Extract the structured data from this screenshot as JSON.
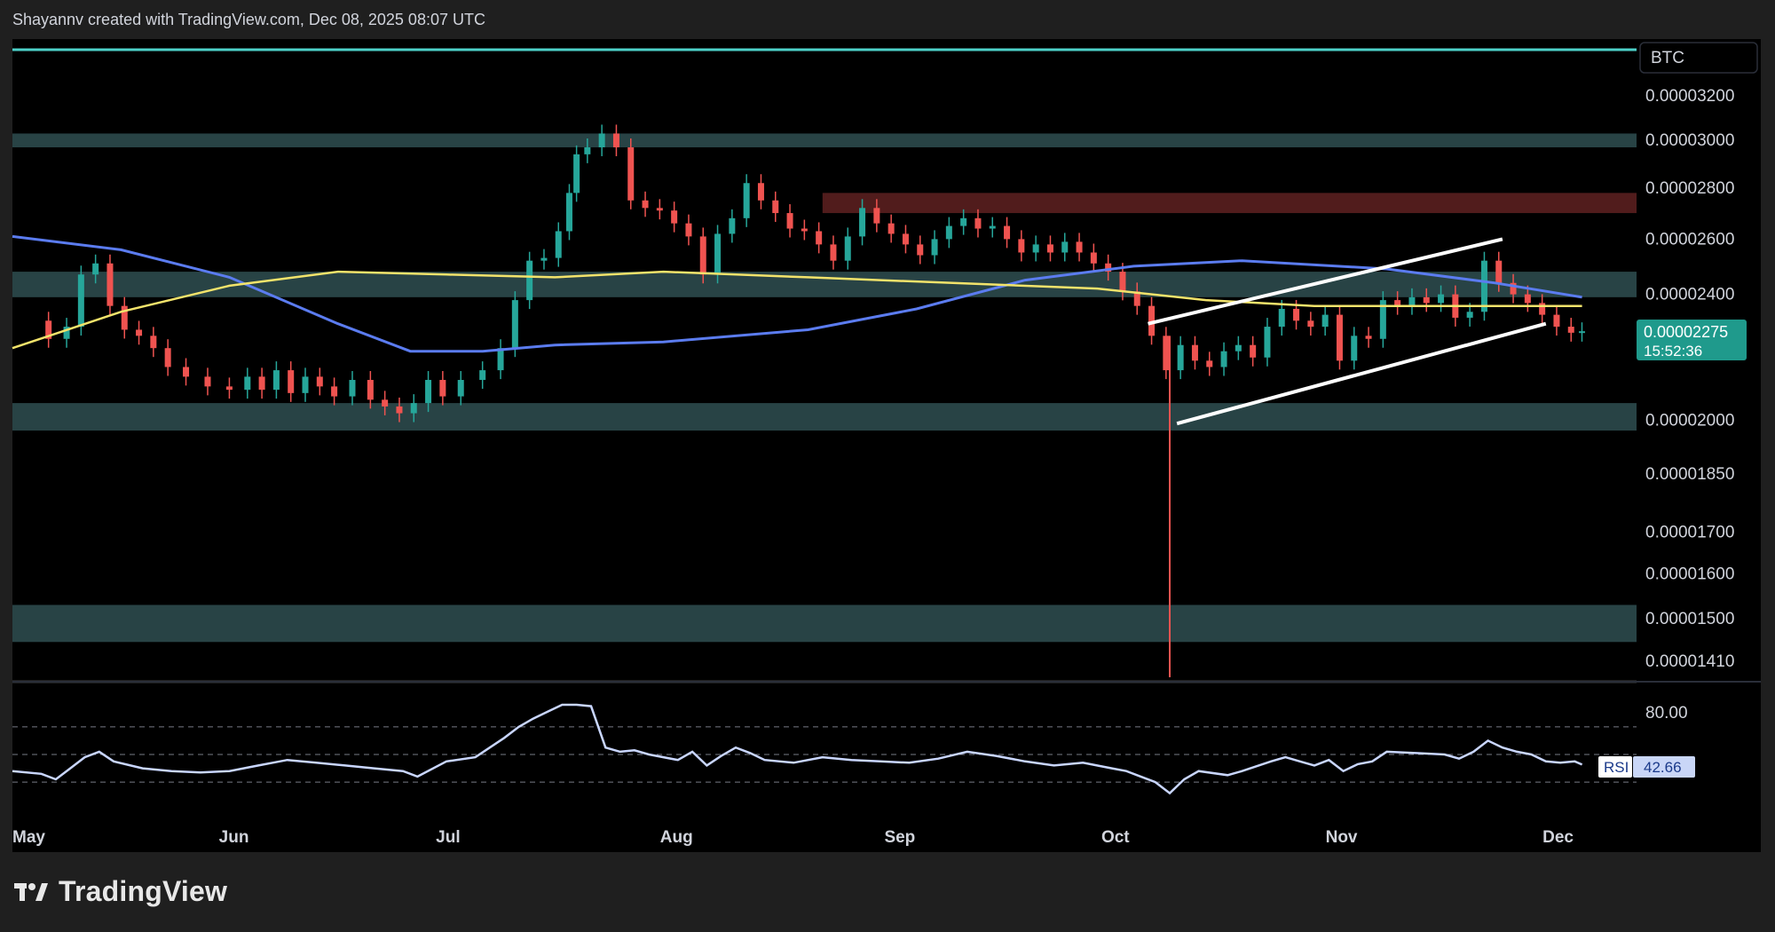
{
  "header": {
    "caption": "Shayannv created with TradingView.com, Dec 08, 2025 08:07 UTC"
  },
  "brand": {
    "name": "TradingView",
    "logo_icon": "tradingview-logo-icon"
  },
  "colors": {
    "background": "#000000",
    "frame": "#1f1f1f",
    "up": "#26a69a",
    "down": "#ef5350",
    "ma_blue": "#5b7cf0",
    "ma_yellow": "#f2e36b",
    "zone": "#2c4a4c",
    "supply_zone": "#5a1f1f",
    "top_line": "#4dd0c8",
    "badge": "#1f9a8c"
  },
  "chart_data": {
    "type": "candlestick",
    "symbol": "BTC",
    "y_axis": {
      "scale": "log",
      "range": [
        1.41e-05,
        3.35e-05
      ]
    },
    "y_ticks": [
      {
        "value": 3.2e-05,
        "label": "0.00003200"
      },
      {
        "value": 3e-05,
        "label": "0.00003000"
      },
      {
        "value": 2.8e-05,
        "label": "0.00002800"
      },
      {
        "value": 2.6e-05,
        "label": "0.00002600"
      },
      {
        "value": 2.4e-05,
        "label": "0.00002400"
      },
      {
        "value": 2e-05,
        "label": "0.00002000"
      },
      {
        "value": 1.85e-05,
        "label": "0.00001850"
      },
      {
        "value": 1.7e-05,
        "label": "0.00001700"
      },
      {
        "value": 1.6e-05,
        "label": "0.00001600"
      },
      {
        "value": 1.5e-05,
        "label": "0.00001500"
      },
      {
        "value": 1.41e-05,
        "label": "0.00001410"
      }
    ],
    "x_labels": [
      {
        "day": 0,
        "label": "May"
      },
      {
        "day": 31,
        "label": "Jun"
      },
      {
        "day": 61,
        "label": "Jul"
      },
      {
        "day": 92,
        "label": "Aug"
      },
      {
        "day": 123,
        "label": "Sep"
      },
      {
        "day": 153,
        "label": "Oct"
      },
      {
        "day": 184,
        "label": "Nov"
      },
      {
        "day": 214,
        "label": "Dec"
      }
    ],
    "current_price": {
      "value": 2.275e-05,
      "label": "0.00002275",
      "countdown": "15:52:36"
    },
    "close_series": [
      [
        3,
        2.31e-05
      ],
      [
        6,
        2.25e-05
      ],
      [
        8,
        2.29e-05
      ],
      [
        10,
        2.47e-05
      ],
      [
        12,
        2.51e-05
      ],
      [
        14,
        2.36e-05
      ],
      [
        16,
        2.28e-05
      ],
      [
        18,
        2.26e-05
      ],
      [
        20,
        2.22e-05
      ],
      [
        22,
        2.16e-05
      ],
      [
        25,
        2.13e-05
      ],
      [
        28,
        2.1e-05
      ],
      [
        31,
        2.09e-05
      ],
      [
        33,
        2.13e-05
      ],
      [
        35,
        2.09e-05
      ],
      [
        37,
        2.15e-05
      ],
      [
        39,
        2.08e-05
      ],
      [
        41,
        2.13e-05
      ],
      [
        43,
        2.1e-05
      ],
      [
        45,
        2.07e-05
      ],
      [
        48,
        2.12e-05
      ],
      [
        50,
        2.06e-05
      ],
      [
        52,
        2.04e-05
      ],
      [
        54,
        2.02e-05
      ],
      [
        56,
        2.05e-05
      ],
      [
        58,
        2.12e-05
      ],
      [
        60,
        2.07e-05
      ],
      [
        63,
        2.12e-05
      ],
      [
        66,
        2.15e-05
      ],
      [
        68,
        2.22e-05
      ],
      [
        70,
        2.38e-05
      ],
      [
        72,
        2.52e-05
      ],
      [
        74,
        2.53e-05
      ],
      [
        76,
        2.63e-05
      ],
      [
        77,
        2.78e-05
      ],
      [
        78,
        2.94e-05
      ],
      [
        80,
        2.97e-05
      ],
      [
        82,
        3.03e-05
      ],
      [
        84,
        2.97e-05
      ],
      [
        86,
        2.75e-05
      ],
      [
        88,
        2.72e-05
      ],
      [
        90,
        2.71e-05
      ],
      [
        92,
        2.66e-05
      ],
      [
        94,
        2.61e-05
      ],
      [
        96,
        2.47e-05
      ],
      [
        98,
        2.62e-05
      ],
      [
        100,
        2.68e-05
      ],
      [
        102,
        2.82e-05
      ],
      [
        104,
        2.75e-05
      ],
      [
        106,
        2.7e-05
      ],
      [
        108,
        2.64e-05
      ],
      [
        110,
        2.63e-05
      ],
      [
        112,
        2.58e-05
      ],
      [
        114,
        2.52e-05
      ],
      [
        116,
        2.61e-05
      ],
      [
        118,
        2.72e-05
      ],
      [
        120,
        2.66e-05
      ],
      [
        122,
        2.62e-05
      ],
      [
        124,
        2.58e-05
      ],
      [
        126,
        2.54e-05
      ],
      [
        128,
        2.6e-05
      ],
      [
        130,
        2.65e-05
      ],
      [
        132,
        2.68e-05
      ],
      [
        134,
        2.64e-05
      ],
      [
        136,
        2.65e-05
      ],
      [
        138,
        2.6e-05
      ],
      [
        140,
        2.55e-05
      ],
      [
        142,
        2.58e-05
      ],
      [
        144,
        2.55e-05
      ],
      [
        146,
        2.59e-05
      ],
      [
        148,
        2.55e-05
      ],
      [
        150,
        2.51e-05
      ],
      [
        152,
        2.48e-05
      ],
      [
        154,
        2.41e-05
      ],
      [
        156,
        2.36e-05
      ],
      [
        158,
        2.26e-05
      ],
      [
        160,
        2.15e-05
      ],
      [
        162,
        2.23e-05
      ],
      [
        164,
        2.18e-05
      ],
      [
        166,
        2.16e-05
      ],
      [
        168,
        2.21e-05
      ],
      [
        170,
        2.23e-05
      ],
      [
        172,
        2.19e-05
      ],
      [
        174,
        2.29e-05
      ],
      [
        176,
        2.35e-05
      ],
      [
        178,
        2.31e-05
      ],
      [
        180,
        2.29e-05
      ],
      [
        182,
        2.33e-05
      ],
      [
        184,
        2.18e-05
      ],
      [
        186,
        2.26e-05
      ],
      [
        188,
        2.25e-05
      ],
      [
        190,
        2.38e-05
      ],
      [
        192,
        2.36e-05
      ],
      [
        194,
        2.39e-05
      ],
      [
        196,
        2.37e-05
      ],
      [
        198,
        2.4e-05
      ],
      [
        200,
        2.32e-05
      ],
      [
        202,
        2.34e-05
      ],
      [
        204,
        2.52e-05
      ],
      [
        206,
        2.44e-05
      ],
      [
        208,
        2.4e-05
      ],
      [
        210,
        2.37e-05
      ],
      [
        212,
        2.33e-05
      ],
      [
        214,
        2.29e-05
      ],
      [
        216,
        2.27e-05
      ],
      [
        217,
        2.275e-05
      ]
    ],
    "ma_blue": [
      [
        0,
        2.61e-05
      ],
      [
        15,
        2.56e-05
      ],
      [
        30,
        2.46e-05
      ],
      [
        45,
        2.3e-05
      ],
      [
        55,
        2.21e-05
      ],
      [
        65,
        2.21e-05
      ],
      [
        75,
        2.23e-05
      ],
      [
        90,
        2.24e-05
      ],
      [
        110,
        2.28e-05
      ],
      [
        125,
        2.35e-05
      ],
      [
        140,
        2.45e-05
      ],
      [
        155,
        2.5e-05
      ],
      [
        170,
        2.52e-05
      ],
      [
        190,
        2.49e-05
      ],
      [
        205,
        2.44e-05
      ],
      [
        217,
        2.39e-05
      ]
    ],
    "ma_yellow": [
      [
        0,
        2.22e-05
      ],
      [
        15,
        2.34e-05
      ],
      [
        30,
        2.43e-05
      ],
      [
        45,
        2.48e-05
      ],
      [
        60,
        2.47e-05
      ],
      [
        75,
        2.46e-05
      ],
      [
        90,
        2.48e-05
      ],
      [
        110,
        2.46e-05
      ],
      [
        130,
        2.44e-05
      ],
      [
        150,
        2.42e-05
      ],
      [
        165,
        2.38e-05
      ],
      [
        180,
        2.36e-05
      ],
      [
        200,
        2.36e-05
      ],
      [
        217,
        2.36e-05
      ]
    ],
    "flash_wick": {
      "day": 160,
      "low": 1.41e-05,
      "high": 2.26e-05
    },
    "zones": [
      {
        "low": 2.97e-05,
        "high": 3.03e-05
      },
      {
        "low": 2.39e-05,
        "high": 2.48e-05
      },
      {
        "low": 1.97e-05,
        "high": 2.05e-05
      },
      {
        "low": 1.45e-05,
        "high": 1.53e-05
      }
    ],
    "supply_zone": {
      "from_day": 112,
      "low": 2.7e-05,
      "high": 2.78e-05
    },
    "channel_lines": [
      {
        "from": [
          157,
          2.3e-05
        ],
        "to": [
          206,
          2.6e-05
        ]
      },
      {
        "from": [
          161,
          1.99e-05
        ],
        "to": [
          212,
          2.3e-05
        ]
      }
    ],
    "top_level": 3.35e-05,
    "rsi": {
      "label": "RSI",
      "value_label": "42.66",
      "value": 42.66,
      "levels": [
        70,
        50,
        30
      ],
      "level_label": "80.00",
      "series": [
        [
          0,
          38
        ],
        [
          4,
          36
        ],
        [
          6,
          32
        ],
        [
          8,
          40
        ],
        [
          10,
          48
        ],
        [
          12,
          52
        ],
        [
          14,
          45
        ],
        [
          18,
          40
        ],
        [
          22,
          38
        ],
        [
          26,
          37
        ],
        [
          30,
          38
        ],
        [
          34,
          42
        ],
        [
          38,
          46
        ],
        [
          42,
          44
        ],
        [
          46,
          42
        ],
        [
          50,
          40
        ],
        [
          54,
          38
        ],
        [
          56,
          34
        ],
        [
          60,
          45
        ],
        [
          64,
          48
        ],
        [
          66,
          55
        ],
        [
          68,
          62
        ],
        [
          70,
          70
        ],
        [
          72,
          76
        ],
        [
          74,
          81
        ],
        [
          76,
          86
        ],
        [
          78,
          86
        ],
        [
          80,
          85
        ],
        [
          82,
          55
        ],
        [
          84,
          52
        ],
        [
          86,
          53
        ],
        [
          88,
          50
        ],
        [
          90,
          48
        ],
        [
          92,
          46
        ],
        [
          94,
          52
        ],
        [
          96,
          42
        ],
        [
          98,
          49
        ],
        [
          100,
          55
        ],
        [
          102,
          51
        ],
        [
          104,
          46
        ],
        [
          108,
          44
        ],
        [
          112,
          48
        ],
        [
          116,
          46
        ],
        [
          120,
          45
        ],
        [
          124,
          44
        ],
        [
          128,
          47
        ],
        [
          132,
          52
        ],
        [
          136,
          49
        ],
        [
          140,
          45
        ],
        [
          144,
          42
        ],
        [
          148,
          44
        ],
        [
          152,
          40
        ],
        [
          154,
          38
        ],
        [
          156,
          34
        ],
        [
          158,
          30
        ],
        [
          160,
          22
        ],
        [
          162,
          32
        ],
        [
          164,
          38
        ],
        [
          168,
          35
        ],
        [
          170,
          38
        ],
        [
          174,
          45
        ],
        [
          176,
          48
        ],
        [
          178,
          45
        ],
        [
          180,
          42
        ],
        [
          182,
          46
        ],
        [
          184,
          38
        ],
        [
          186,
          43
        ],
        [
          188,
          45
        ],
        [
          190,
          52
        ],
        [
          194,
          51
        ],
        [
          198,
          50
        ],
        [
          200,
          47
        ],
        [
          202,
          52
        ],
        [
          204,
          60
        ],
        [
          206,
          55
        ],
        [
          208,
          52
        ],
        [
          210,
          50
        ],
        [
          212,
          45
        ],
        [
          214,
          44
        ],
        [
          216,
          45
        ],
        [
          217,
          42.66
        ]
      ]
    }
  }
}
